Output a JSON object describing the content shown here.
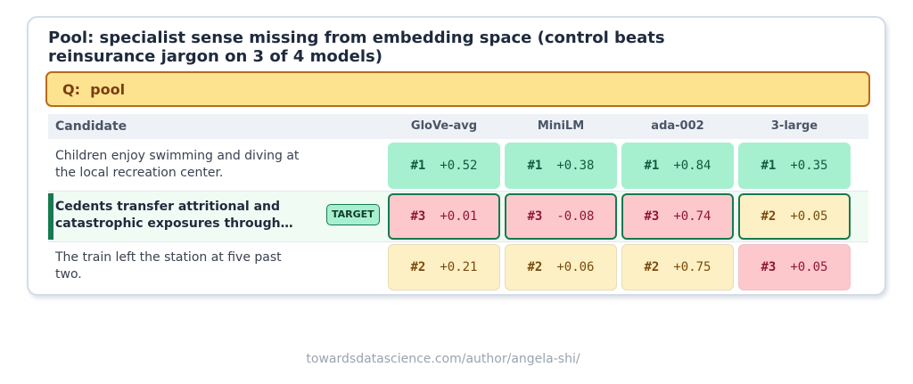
{
  "title": "Pool: specialist sense missing from embedding space (control beats reinsurance jargon on 3 of 4 models)",
  "query_label": "Q:  pool",
  "candidate_header": "Candidate",
  "target_badge": "TARGET",
  "footer": "towardsdatascience.com/author/angela-shi/",
  "colors": {
    "rank1": "#a6f0cf",
    "rank2": "#fdf0c4",
    "rank3": "#fdc8cc",
    "accent": "#157a4f"
  },
  "chart_data": {
    "type": "table",
    "models": [
      "GloVe-avg",
      "MiniLM",
      "ada-002",
      "3-large"
    ],
    "rows": [
      {
        "candidate": "Children enjoy swimming and diving at the local recreation center.",
        "target": false,
        "cells": [
          {
            "rank": "#1",
            "score": "+0.52"
          },
          {
            "rank": "#1",
            "score": "+0.38"
          },
          {
            "rank": "#1",
            "score": "+0.84"
          },
          {
            "rank": "#1",
            "score": "+0.35"
          }
        ]
      },
      {
        "candidate": "Cedents transfer attritional and catastrophic exposures through…",
        "target": true,
        "cells": [
          {
            "rank": "#3",
            "score": "+0.01"
          },
          {
            "rank": "#3",
            "score": "-0.08"
          },
          {
            "rank": "#3",
            "score": "+0.74"
          },
          {
            "rank": "#2",
            "score": "+0.05"
          }
        ]
      },
      {
        "candidate": "The train left the station at five past two.",
        "target": false,
        "cells": [
          {
            "rank": "#2",
            "score": "+0.21"
          },
          {
            "rank": "#2",
            "score": "+0.06"
          },
          {
            "rank": "#2",
            "score": "+0.75"
          },
          {
            "rank": "#3",
            "score": "+0.05"
          }
        ]
      }
    ]
  }
}
